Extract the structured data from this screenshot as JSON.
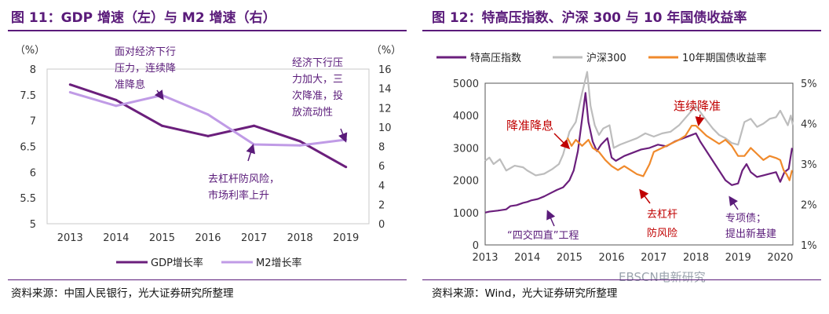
{
  "left_panel": {
    "title": "图 11：GDP 增速（左）与 M2 增速（右）",
    "source": "资料来源：中国人民银行，光大证券研究所整理"
  },
  "right_panel": {
    "title": "图 12：特高压指数、沪深 300 与 10 年国债收益率",
    "source": "资料来源：Wind，光大证券研究所整理",
    "watermark": "EBSCN电新研究"
  },
  "colors": {
    "dark_purple": "#6b1f7c",
    "light_purple": "#c09be6",
    "gray": "#bdbdbd",
    "orange": "#f08a2c",
    "annotation": "#c00000",
    "annotation_purple": "#5a1b7a",
    "title": "#5a1b7a"
  },
  "chart_data": [
    {
      "type": "line",
      "categories": [
        "2013",
        "2014",
        "2015",
        "2016",
        "2017",
        "2018",
        "2019"
      ],
      "left_axis_unit": "（%）",
      "right_axis_unit": "（%）",
      "ylim_left": [
        5,
        8
      ],
      "ylim_right": [
        0,
        16
      ],
      "yticks_left": [
        "5",
        "5.5",
        "6",
        "6.5",
        "7",
        "7.5",
        "8"
      ],
      "yticks_right": [
        "0",
        "2",
        "4",
        "6",
        "8",
        "10",
        "12",
        "14",
        "16"
      ],
      "series": [
        {
          "name": "GDP增长率",
          "axis": "left",
          "values": [
            7.7,
            7.4,
            6.9,
            6.7,
            6.9,
            6.6,
            6.1
          ]
        },
        {
          "name": "M2增长率",
          "axis": "right",
          "values": [
            13.6,
            12.2,
            13.3,
            11.3,
            8.2,
            8.1,
            8.7
          ]
        }
      ],
      "annotations": [
        {
          "id": "a1",
          "lines": [
            "面对经济下行",
            "压力，连续降",
            "准降息"
          ]
        },
        {
          "id": "a2",
          "lines": [
            "经济下行压",
            "力加大，三",
            "次降准，投",
            "放流动性"
          ]
        },
        {
          "id": "a3",
          "lines": [
            "去杠杆防风险，",
            "市场利率上升"
          ]
        }
      ]
    },
    {
      "type": "line",
      "x_range": [
        2013,
        2020.3
      ],
      "xticks": [
        "2013",
        "2014",
        "2015",
        "2016",
        "2017",
        "2018",
        "2019",
        "2020"
      ],
      "ylim_left": [
        0,
        5000
      ],
      "ylim_right": [
        1,
        5
      ],
      "yticks_left": [
        "0",
        "1000",
        "2000",
        "3000",
        "4000",
        "5000"
      ],
      "yticks_right": [
        "1%",
        "2%",
        "3%",
        "4%",
        "5%"
      ],
      "series": [
        {
          "name": "特高压指数",
          "axis": "left",
          "points": [
            [
              2013.0,
              1000
            ],
            [
              2013.1,
              1030
            ],
            [
              2013.3,
              1060
            ],
            [
              2013.5,
              1100
            ],
            [
              2013.6,
              1200
            ],
            [
              2013.75,
              1230
            ],
            [
              2013.9,
              1300
            ],
            [
              2014.0,
              1330
            ],
            [
              2014.1,
              1380
            ],
            [
              2014.25,
              1420
            ],
            [
              2014.4,
              1500
            ],
            [
              2014.55,
              1600
            ],
            [
              2014.7,
              1700
            ],
            [
              2014.85,
              1780
            ],
            [
              2015.0,
              2000
            ],
            [
              2015.1,
              2300
            ],
            [
              2015.2,
              2900
            ],
            [
              2015.3,
              3900
            ],
            [
              2015.38,
              4700
            ],
            [
              2015.45,
              3800
            ],
            [
              2015.55,
              3200
            ],
            [
              2015.65,
              2900
            ],
            [
              2015.75,
              3100
            ],
            [
              2015.9,
              3300
            ],
            [
              2016.0,
              2700
            ],
            [
              2016.1,
              2600
            ],
            [
              2016.3,
              2750
            ],
            [
              2016.5,
              2850
            ],
            [
              2016.7,
              2950
            ],
            [
              2016.9,
              3000
            ],
            [
              2017.1,
              3100
            ],
            [
              2017.3,
              3050
            ],
            [
              2017.5,
              3200
            ],
            [
              2017.7,
              3300
            ],
            [
              2017.9,
              3400
            ],
            [
              2018.0,
              3450
            ],
            [
              2018.1,
              3200
            ],
            [
              2018.25,
              2900
            ],
            [
              2018.4,
              2600
            ],
            [
              2018.55,
              2300
            ],
            [
              2018.7,
              2000
            ],
            [
              2018.85,
              1850
            ],
            [
              2019.0,
              1900
            ],
            [
              2019.1,
              2300
            ],
            [
              2019.2,
              2500
            ],
            [
              2019.3,
              2250
            ],
            [
              2019.45,
              2100
            ],
            [
              2019.6,
              2150
            ],
            [
              2019.75,
              2200
            ],
            [
              2019.9,
              2250
            ],
            [
              2020.0,
              1950
            ],
            [
              2020.1,
              2250
            ],
            [
              2020.2,
              2350
            ],
            [
              2020.28,
              3000
            ]
          ]
        },
        {
          "name": "沪深300",
          "axis": "left",
          "points": [
            [
              2013.0,
              2600
            ],
            [
              2013.1,
              2700
            ],
            [
              2013.2,
              2500
            ],
            [
              2013.35,
              2650
            ],
            [
              2013.5,
              2300
            ],
            [
              2013.7,
              2450
            ],
            [
              2013.9,
              2400
            ],
            [
              2014.0,
              2300
            ],
            [
              2014.2,
              2150
            ],
            [
              2014.4,
              2200
            ],
            [
              2014.6,
              2350
            ],
            [
              2014.75,
              2500
            ],
            [
              2014.85,
              2800
            ],
            [
              2015.0,
              3500
            ],
            [
              2015.15,
              3800
            ],
            [
              2015.3,
              4700
            ],
            [
              2015.42,
              5350
            ],
            [
              2015.5,
              4300
            ],
            [
              2015.6,
              3700
            ],
            [
              2015.7,
              3400
            ],
            [
              2015.8,
              3600
            ],
            [
              2015.95,
              3700
            ],
            [
              2016.05,
              3000
            ],
            [
              2016.2,
              3100
            ],
            [
              2016.4,
              3200
            ],
            [
              2016.6,
              3300
            ],
            [
              2016.8,
              3450
            ],
            [
              2017.0,
              3350
            ],
            [
              2017.2,
              3450
            ],
            [
              2017.4,
              3500
            ],
            [
              2017.6,
              3700
            ],
            [
              2017.8,
              4000
            ],
            [
              2018.0,
              4300
            ],
            [
              2018.08,
              4150
            ],
            [
              2018.25,
              3850
            ],
            [
              2018.4,
              3600
            ],
            [
              2018.55,
              3400
            ],
            [
              2018.7,
              3300
            ],
            [
              2018.85,
              3150
            ],
            [
              2019.0,
              3100
            ],
            [
              2019.15,
              3800
            ],
            [
              2019.3,
              3900
            ],
            [
              2019.45,
              3650
            ],
            [
              2019.6,
              3750
            ],
            [
              2019.75,
              3900
            ],
            [
              2019.9,
              3950
            ],
            [
              2020.0,
              4150
            ],
            [
              2020.1,
              3900
            ],
            [
              2020.18,
              3700
            ],
            [
              2020.25,
              4000
            ],
            [
              2020.3,
              3700
            ]
          ]
        },
        {
          "name": "10年期国债收益率",
          "axis": "right",
          "points": [
            [
              2014.95,
              3.65
            ],
            [
              2015.05,
              3.45
            ],
            [
              2015.15,
              3.6
            ],
            [
              2015.3,
              3.45
            ],
            [
              2015.45,
              3.6
            ],
            [
              2015.55,
              3.4
            ],
            [
              2015.7,
              3.3
            ],
            [
              2015.85,
              3.1
            ],
            [
              2016.0,
              2.95
            ],
            [
              2016.15,
              2.85
            ],
            [
              2016.3,
              2.95
            ],
            [
              2016.45,
              2.85
            ],
            [
              2016.6,
              2.75
            ],
            [
              2016.75,
              2.7
            ],
            [
              2016.9,
              3.0
            ],
            [
              2017.0,
              3.3
            ],
            [
              2017.2,
              3.4
            ],
            [
              2017.4,
              3.5
            ],
            [
              2017.6,
              3.6
            ],
            [
              2017.75,
              3.7
            ],
            [
              2017.9,
              3.95
            ],
            [
              2018.0,
              3.95
            ],
            [
              2018.1,
              3.85
            ],
            [
              2018.25,
              3.7
            ],
            [
              2018.4,
              3.6
            ],
            [
              2018.55,
              3.5
            ],
            [
              2018.7,
              3.6
            ],
            [
              2018.85,
              3.45
            ],
            [
              2019.0,
              3.2
            ],
            [
              2019.15,
              3.2
            ],
            [
              2019.3,
              3.4
            ],
            [
              2019.45,
              3.25
            ],
            [
              2019.6,
              3.1
            ],
            [
              2019.75,
              3.2
            ],
            [
              2019.9,
              3.15
            ],
            [
              2020.0,
              3.1
            ],
            [
              2020.08,
              2.85
            ],
            [
              2020.15,
              2.75
            ],
            [
              2020.22,
              2.6
            ],
            [
              2020.28,
              2.85
            ]
          ]
        }
      ],
      "annotations": [
        {
          "id": "b1",
          "lines": [
            "降准降息"
          ]
        },
        {
          "id": "b2",
          "lines": [
            "连续降准"
          ]
        },
        {
          "id": "b3",
          "lines": [
            "去杠杆",
            "防风险"
          ]
        },
        {
          "id": "b4",
          "lines": [
            "“四交四直”工程"
          ]
        },
        {
          "id": "b5",
          "lines": [
            "专项债；",
            "提出新基建"
          ]
        }
      ]
    }
  ]
}
